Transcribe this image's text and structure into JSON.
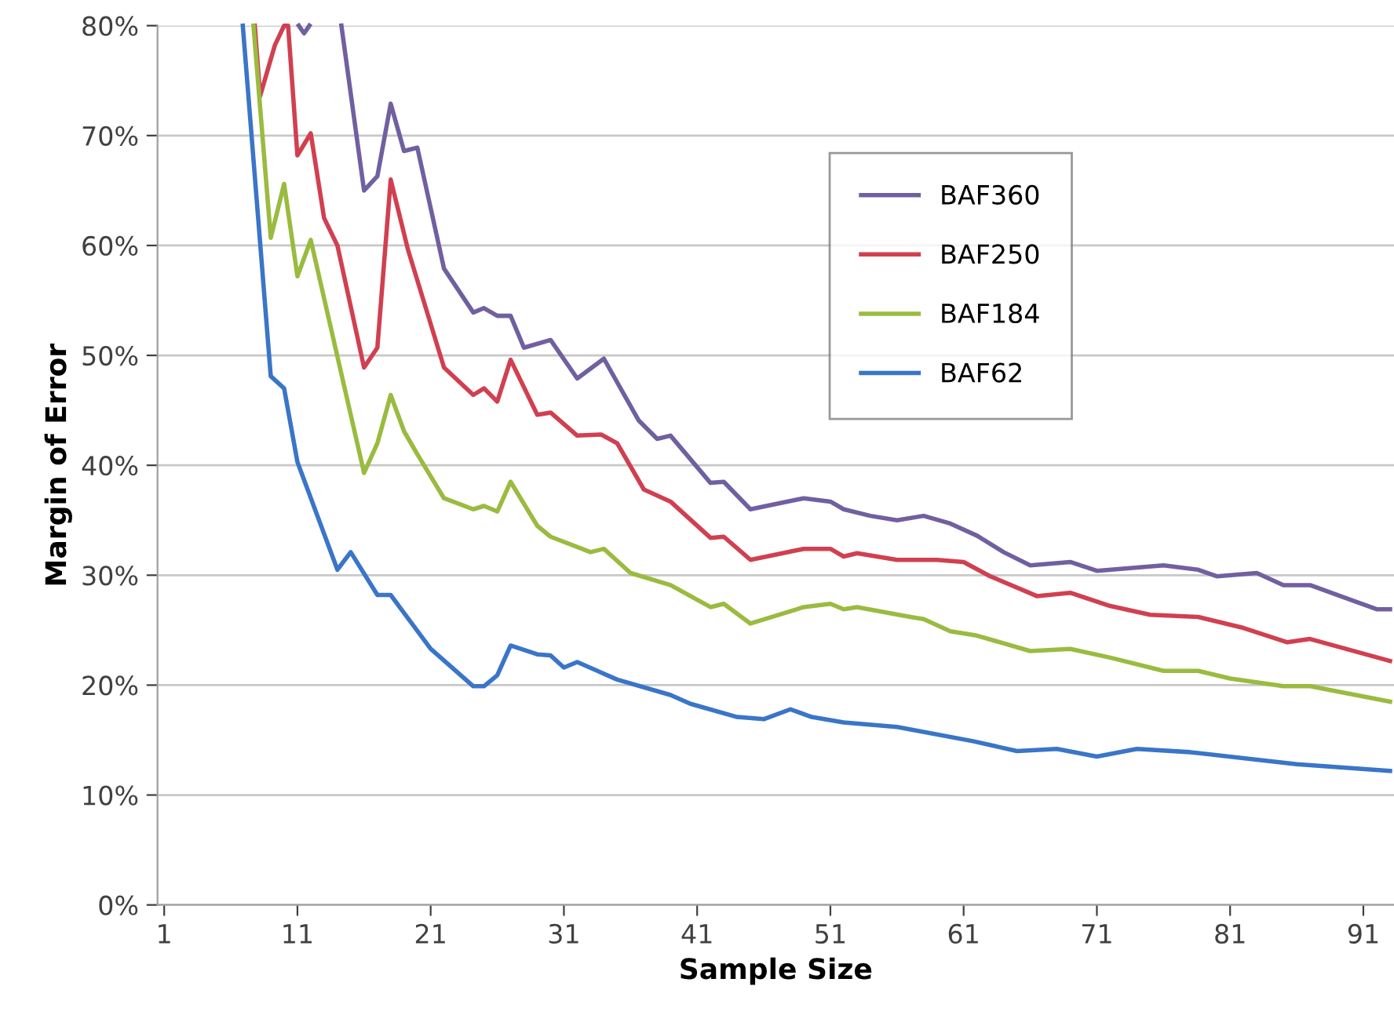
{
  "chart_data": {
    "type": "line",
    "xlabel": "Sample Size",
    "ylabel": "Margin of Error",
    "xlim": [
      0.5,
      93.3
    ],
    "xticks": [
      1,
      11,
      21,
      31,
      41,
      51,
      61,
      71,
      81,
      91
    ],
    "ylim": [
      0,
      80
    ],
    "yticks": [
      {
        "value": 0,
        "label": "0%"
      },
      {
        "value": 10,
        "label": "10%"
      },
      {
        "value": 20,
        "label": "20%"
      },
      {
        "value": 30,
        "label": "30%"
      },
      {
        "value": 40,
        "label": "40%"
      },
      {
        "value": 50,
        "label": "50%"
      },
      {
        "value": 60,
        "label": "60%"
      },
      {
        "value": 70,
        "label": "70%"
      },
      {
        "value": 80,
        "label": "80%"
      }
    ],
    "grid": "y",
    "legend": "top right",
    "marker": "none",
    "line_style": "solid",
    "series": [
      {
        "name": "BAF360",
        "color": "#7060a0",
        "x": [
          11.1,
          11.5,
          11.9,
          12,
          14.3,
          16,
          17,
          18,
          19,
          20,
          22,
          24.2,
          25,
          26,
          27,
          28,
          30,
          32,
          34,
          36.6,
          38,
          39,
          42,
          43,
          45,
          49,
          51,
          52,
          54,
          56,
          58,
          60,
          62,
          64,
          66,
          69,
          71,
          76,
          78.6,
          80,
          83,
          85,
          87,
          92,
          93
        ],
        "values": [
          80,
          79.3,
          80,
          null,
          80,
          65.0,
          66.3,
          72.9,
          68.6,
          68.9,
          57.9,
          53.9,
          54.3,
          53.6,
          53.6,
          50.7,
          51.4,
          47.9,
          49.7,
          44.1,
          42.4,
          42.7,
          38.4,
          38.5,
          36.0,
          37.0,
          36.7,
          36.0,
          35.4,
          35.0,
          35.4,
          34.7,
          33.6,
          32.1,
          30.9,
          31.2,
          30.4,
          30.9,
          30.5,
          29.9,
          30.2,
          29.1,
          29.1,
          26.9,
          26.9
        ]
      },
      {
        "name": "BAF250",
        "color": "#d04050",
        "x": [
          7.8,
          8.2,
          9.3,
          10,
          10.3,
          11,
          12,
          13,
          14,
          16,
          17,
          18,
          19.3,
          22,
          24.2,
          25,
          26,
          27,
          29,
          30,
          32,
          33.8,
          35,
          37,
          39,
          42,
          43,
          45,
          49,
          51,
          52,
          53,
          56,
          59,
          61,
          63,
          66.5,
          69,
          72,
          75,
          78.6,
          82,
          85.3,
          87,
          93
        ],
        "values": [
          80,
          73.6,
          78.2,
          80,
          80,
          68.2,
          70.2,
          62.5,
          60.0,
          48.9,
          50.7,
          66.0,
          59.6,
          48.9,
          46.4,
          47.0,
          45.8,
          49.6,
          44.6,
          44.8,
          42.7,
          42.8,
          42.0,
          37.8,
          36.7,
          33.4,
          33.5,
          31.4,
          32.4,
          32.4,
          31.7,
          32.0,
          31.4,
          31.4,
          31.2,
          29.9,
          28.1,
          28.4,
          27.2,
          26.4,
          26.2,
          25.2,
          23.9,
          24.2,
          22.2
        ]
      },
      {
        "name": "BAF184",
        "color": "#9abb40",
        "x": [
          7.7,
          9,
          10,
          11,
          12,
          16,
          17,
          18,
          19,
          20,
          22,
          24.2,
          25,
          26,
          27,
          29,
          30,
          33,
          34,
          36,
          39,
          42,
          43,
          45,
          49,
          51,
          52,
          53,
          57,
          58,
          60,
          62,
          66,
          69,
          72,
          76,
          78.6,
          81,
          85,
          87,
          93
        ],
        "values": [
          80,
          60.7,
          65.6,
          57.2,
          60.5,
          39.3,
          42.0,
          46.4,
          43.1,
          41.0,
          37.0,
          36.0,
          36.3,
          35.8,
          38.5,
          34.5,
          33.5,
          32.1,
          32.4,
          30.2,
          29.1,
          27.1,
          27.4,
          25.6,
          27.1,
          27.4,
          26.9,
          27.1,
          26.2,
          26.0,
          24.9,
          24.5,
          23.1,
          23.3,
          22.5,
          21.3,
          21.3,
          20.6,
          19.9,
          19.9,
          18.5
        ]
      },
      {
        "name": "BAF62",
        "color": "#3a75c8",
        "x": [
          6.9,
          9,
          10,
          11,
          14,
          15,
          17,
          18,
          21,
          24.2,
          25,
          26,
          27,
          29,
          30,
          31,
          32,
          35,
          39,
          40.5,
          44,
          46,
          48,
          49.6,
          52,
          56,
          61.7,
          65,
          68,
          71,
          74,
          78,
          86,
          93
        ],
        "values": [
          80,
          48.1,
          47.0,
          40.3,
          30.5,
          32.1,
          28.2,
          28.2,
          23.3,
          19.9,
          19.9,
          20.9,
          23.6,
          22.8,
          22.7,
          21.6,
          22.1,
          20.5,
          19.1,
          18.3,
          17.1,
          16.9,
          17.8,
          17.1,
          16.6,
          16.2,
          14.9,
          14.0,
          14.2,
          13.5,
          14.2,
          13.9,
          12.8,
          12.2
        ]
      }
    ]
  }
}
